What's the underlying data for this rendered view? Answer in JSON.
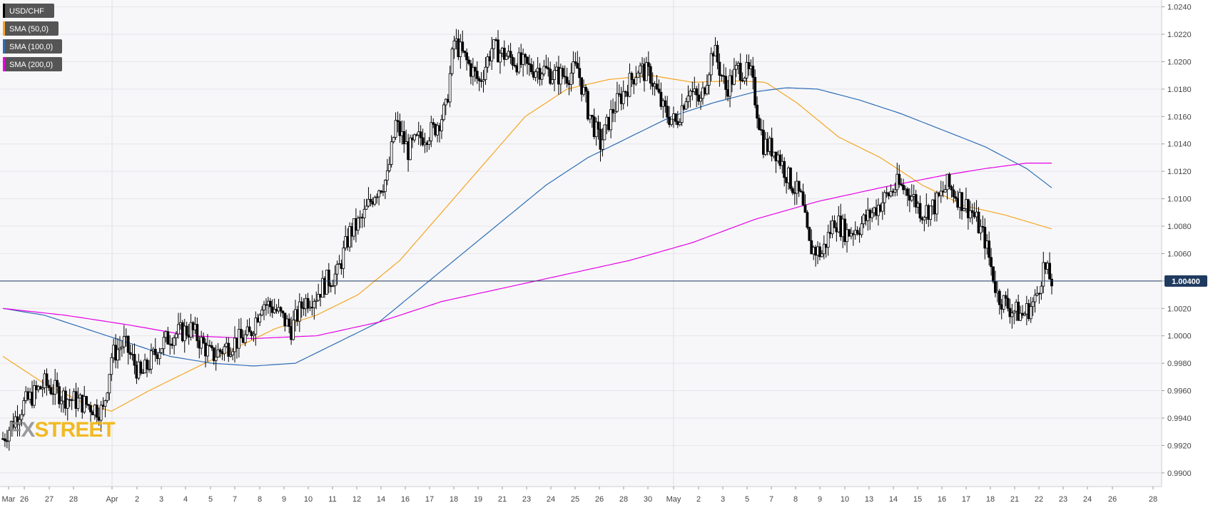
{
  "legend": [
    {
      "label": "USD/CHF",
      "color": "#000000"
    },
    {
      "label": "SMA (50,0)",
      "color": "#f5a623"
    },
    {
      "label": "SMA (100,0)",
      "color": "#2f6db5"
    },
    {
      "label": "SMA (200,0)",
      "color": "#e600e6"
    }
  ],
  "current_price_label": "1.00400",
  "logo": {
    "part1": "FX",
    "part2": "STREET"
  },
  "chart_data": {
    "type": "candlestick",
    "symbol": "USD/CHF",
    "ylim": [
      0.989,
      1.0245
    ],
    "y_ticks": [
      "0.9900",
      "0.9920",
      "0.9940",
      "0.9960",
      "0.9980",
      "1.0000",
      "1.0020",
      "1.0040",
      "1.0060",
      "1.0080",
      "1.0100",
      "1.0120",
      "1.0140",
      "1.0160",
      "1.0180",
      "1.0200",
      "1.0220",
      "1.0240"
    ],
    "x_ticks": [
      "Mar",
      "26",
      "27",
      "28",
      "Apr",
      "2",
      "3",
      "4",
      "5",
      "7",
      "8",
      "9",
      "10",
      "11",
      "12",
      "14",
      "16",
      "17",
      "18",
      "19",
      "21",
      "23",
      "24",
      "25",
      "26",
      "28",
      "30",
      "May",
      "2",
      "3",
      "5",
      "7",
      "8",
      "9",
      "10",
      "13",
      "14",
      "15",
      "16",
      "17",
      "18",
      "21",
      "22",
      "23",
      "24",
      "26",
      "28"
    ],
    "current_price": 1.004,
    "grid": true,
    "legend_position": "top-left",
    "series": [
      {
        "name": "SMA (50,0)",
        "color": "#f5a623"
      },
      {
        "name": "SMA (100,0)",
        "color": "#2f6db5"
      },
      {
        "name": "SMA (200,0)",
        "color": "#e600e6"
      }
    ],
    "anchors": [
      {
        "i": 0,
        "c": 0.9925
      },
      {
        "i": 10,
        "c": 0.995
      },
      {
        "i": 20,
        "c": 0.9965
      },
      {
        "i": 30,
        "c": 0.9955
      },
      {
        "i": 40,
        "c": 0.995
      },
      {
        "i": 48,
        "c": 0.9945
      },
      {
        "i": 52,
        "c": 0.9985
      },
      {
        "i": 58,
        "c": 0.9995
      },
      {
        "i": 66,
        "c": 0.997
      },
      {
        "i": 74,
        "c": 0.999
      },
      {
        "i": 80,
        "c": 1.0
      },
      {
        "i": 90,
        "c": 1.0005
      },
      {
        "i": 100,
        "c": 0.9985
      },
      {
        "i": 110,
        "c": 0.9995
      },
      {
        "i": 118,
        "c": 1.0
      },
      {
        "i": 124,
        "c": 1.0025
      },
      {
        "i": 130,
        "c": 1.002
      },
      {
        "i": 138,
        "c": 1.0005
      },
      {
        "i": 144,
        "c": 1.0025
      },
      {
        "i": 150,
        "c": 1.003
      },
      {
        "i": 155,
        "c": 1.004
      },
      {
        "i": 160,
        "c": 1.0045
      },
      {
        "i": 166,
        "c": 1.0075
      },
      {
        "i": 172,
        "c": 1.0085
      },
      {
        "i": 178,
        "c": 1.0105
      },
      {
        "i": 184,
        "c": 1.0115
      },
      {
        "i": 188,
        "c": 1.0155
      },
      {
        "i": 194,
        "c": 1.0135
      },
      {
        "i": 200,
        "c": 1.0145
      },
      {
        "i": 206,
        "c": 1.015
      },
      {
        "i": 212,
        "c": 1.0165
      },
      {
        "i": 216,
        "c": 1.0215
      },
      {
        "i": 222,
        "c": 1.02
      },
      {
        "i": 228,
        "c": 1.0185
      },
      {
        "i": 234,
        "c": 1.021
      },
      {
        "i": 240,
        "c": 1.0205
      },
      {
        "i": 246,
        "c": 1.02
      },
      {
        "i": 252,
        "c": 1.0195
      },
      {
        "i": 258,
        "c": 1.0195
      },
      {
        "i": 264,
        "c": 1.019
      },
      {
        "i": 270,
        "c": 1.019
      },
      {
        "i": 275,
        "c": 1.0195
      },
      {
        "i": 280,
        "c": 1.0165
      },
      {
        "i": 286,
        "c": 1.014
      },
      {
        "i": 292,
        "c": 1.0165
      },
      {
        "i": 298,
        "c": 1.018
      },
      {
        "i": 304,
        "c": 1.0195
      },
      {
        "i": 310,
        "c": 1.019
      },
      {
        "i": 316,
        "c": 1.0165
      },
      {
        "i": 322,
        "c": 1.0155
      },
      {
        "i": 328,
        "c": 1.018
      },
      {
        "i": 334,
        "c": 1.017
      },
      {
        "i": 340,
        "c": 1.021
      },
      {
        "i": 346,
        "c": 1.018
      },
      {
        "i": 352,
        "c": 1.0195
      },
      {
        "i": 358,
        "c": 1.019
      },
      {
        "i": 364,
        "c": 1.014
      },
      {
        "i": 370,
        "c": 1.0135
      },
      {
        "i": 376,
        "c": 1.0115
      },
      {
        "i": 382,
        "c": 1.01
      },
      {
        "i": 386,
        "c": 1.0065
      },
      {
        "i": 392,
        "c": 1.006
      },
      {
        "i": 398,
        "c": 1.0085
      },
      {
        "i": 404,
        "c": 1.0075
      },
      {
        "i": 410,
        "c": 1.008
      },
      {
        "i": 416,
        "c": 1.009
      },
      {
        "i": 422,
        "c": 1.01
      },
      {
        "i": 428,
        "c": 1.011
      },
      {
        "i": 434,
        "c": 1.0105
      },
      {
        "i": 440,
        "c": 1.009
      },
      {
        "i": 446,
        "c": 1.0095
      },
      {
        "i": 452,
        "c": 1.011
      },
      {
        "i": 458,
        "c": 1.01
      },
      {
        "i": 464,
        "c": 1.009
      },
      {
        "i": 470,
        "c": 1.007
      },
      {
        "i": 476,
        "c": 1.003
      },
      {
        "i": 482,
        "c": 1.002
      },
      {
        "i": 488,
        "c": 1.0015
      },
      {
        "i": 494,
        "c": 1.0025
      },
      {
        "i": 498,
        "c": 1.005
      },
      {
        "i": 502,
        "c": 1.004
      }
    ],
    "sma50": [
      {
        "i": 0,
        "c": 0.9985
      },
      {
        "i": 20,
        "c": 0.9965
      },
      {
        "i": 40,
        "c": 0.995
      },
      {
        "i": 52,
        "c": 0.9945
      },
      {
        "i": 70,
        "c": 0.996
      },
      {
        "i": 90,
        "c": 0.9975
      },
      {
        "i": 110,
        "c": 0.999
      },
      {
        "i": 130,
        "c": 1.0005
      },
      {
        "i": 150,
        "c": 1.0015
      },
      {
        "i": 170,
        "c": 1.003
      },
      {
        "i": 190,
        "c": 1.0055
      },
      {
        "i": 210,
        "c": 1.009
      },
      {
        "i": 230,
        "c": 1.0125
      },
      {
        "i": 250,
        "c": 1.016
      },
      {
        "i": 270,
        "c": 1.018
      },
      {
        "i": 290,
        "c": 1.0187
      },
      {
        "i": 310,
        "c": 1.019
      },
      {
        "i": 330,
        "c": 1.0185
      },
      {
        "i": 350,
        "c": 1.0186
      },
      {
        "i": 365,
        "c": 1.0185
      },
      {
        "i": 380,
        "c": 1.017
      },
      {
        "i": 400,
        "c": 1.0145
      },
      {
        "i": 420,
        "c": 1.013
      },
      {
        "i": 440,
        "c": 1.011
      },
      {
        "i": 460,
        "c": 1.0095
      },
      {
        "i": 480,
        "c": 1.0088
      },
      {
        "i": 502,
        "c": 1.0078
      }
    ],
    "sma100": [
      {
        "i": 0,
        "c": 1.002
      },
      {
        "i": 20,
        "c": 1.0015
      },
      {
        "i": 40,
        "c": 1.0005
      },
      {
        "i": 60,
        "c": 0.9995
      },
      {
        "i": 80,
        "c": 0.9985
      },
      {
        "i": 100,
        "c": 0.998
      },
      {
        "i": 120,
        "c": 0.9978
      },
      {
        "i": 140,
        "c": 0.998
      },
      {
        "i": 160,
        "c": 0.9995
      },
      {
        "i": 180,
        "c": 1.001
      },
      {
        "i": 200,
        "c": 1.0035
      },
      {
        "i": 220,
        "c": 1.006
      },
      {
        "i": 240,
        "c": 1.0085
      },
      {
        "i": 260,
        "c": 1.011
      },
      {
        "i": 280,
        "c": 1.013
      },
      {
        "i": 300,
        "c": 1.0145
      },
      {
        "i": 320,
        "c": 1.016
      },
      {
        "i": 340,
        "c": 1.017
      },
      {
        "i": 360,
        "c": 1.0178
      },
      {
        "i": 375,
        "c": 1.0181
      },
      {
        "i": 390,
        "c": 1.018
      },
      {
        "i": 410,
        "c": 1.0172
      },
      {
        "i": 430,
        "c": 1.0162
      },
      {
        "i": 450,
        "c": 1.015
      },
      {
        "i": 470,
        "c": 1.0138
      },
      {
        "i": 490,
        "c": 1.0122
      },
      {
        "i": 502,
        "c": 1.0108
      }
    ],
    "sma200": [
      {
        "i": 0,
        "c": 1.002
      },
      {
        "i": 30,
        "c": 1.0015
      },
      {
        "i": 60,
        "c": 1.0008
      },
      {
        "i": 90,
        "c": 1.0
      },
      {
        "i": 120,
        "c": 0.9998
      },
      {
        "i": 150,
        "c": 1.0
      },
      {
        "i": 180,
        "c": 1.001
      },
      {
        "i": 210,
        "c": 1.0025
      },
      {
        "i": 240,
        "c": 1.0035
      },
      {
        "i": 270,
        "c": 1.0045
      },
      {
        "i": 300,
        "c": 1.0055
      },
      {
        "i": 330,
        "c": 1.0068
      },
      {
        "i": 360,
        "c": 1.0085
      },
      {
        "i": 390,
        "c": 1.0098
      },
      {
        "i": 420,
        "c": 1.0108
      },
      {
        "i": 450,
        "c": 1.0117
      },
      {
        "i": 470,
        "c": 1.0122
      },
      {
        "i": 490,
        "c": 1.0126
      },
      {
        "i": 502,
        "c": 1.0126
      }
    ]
  }
}
